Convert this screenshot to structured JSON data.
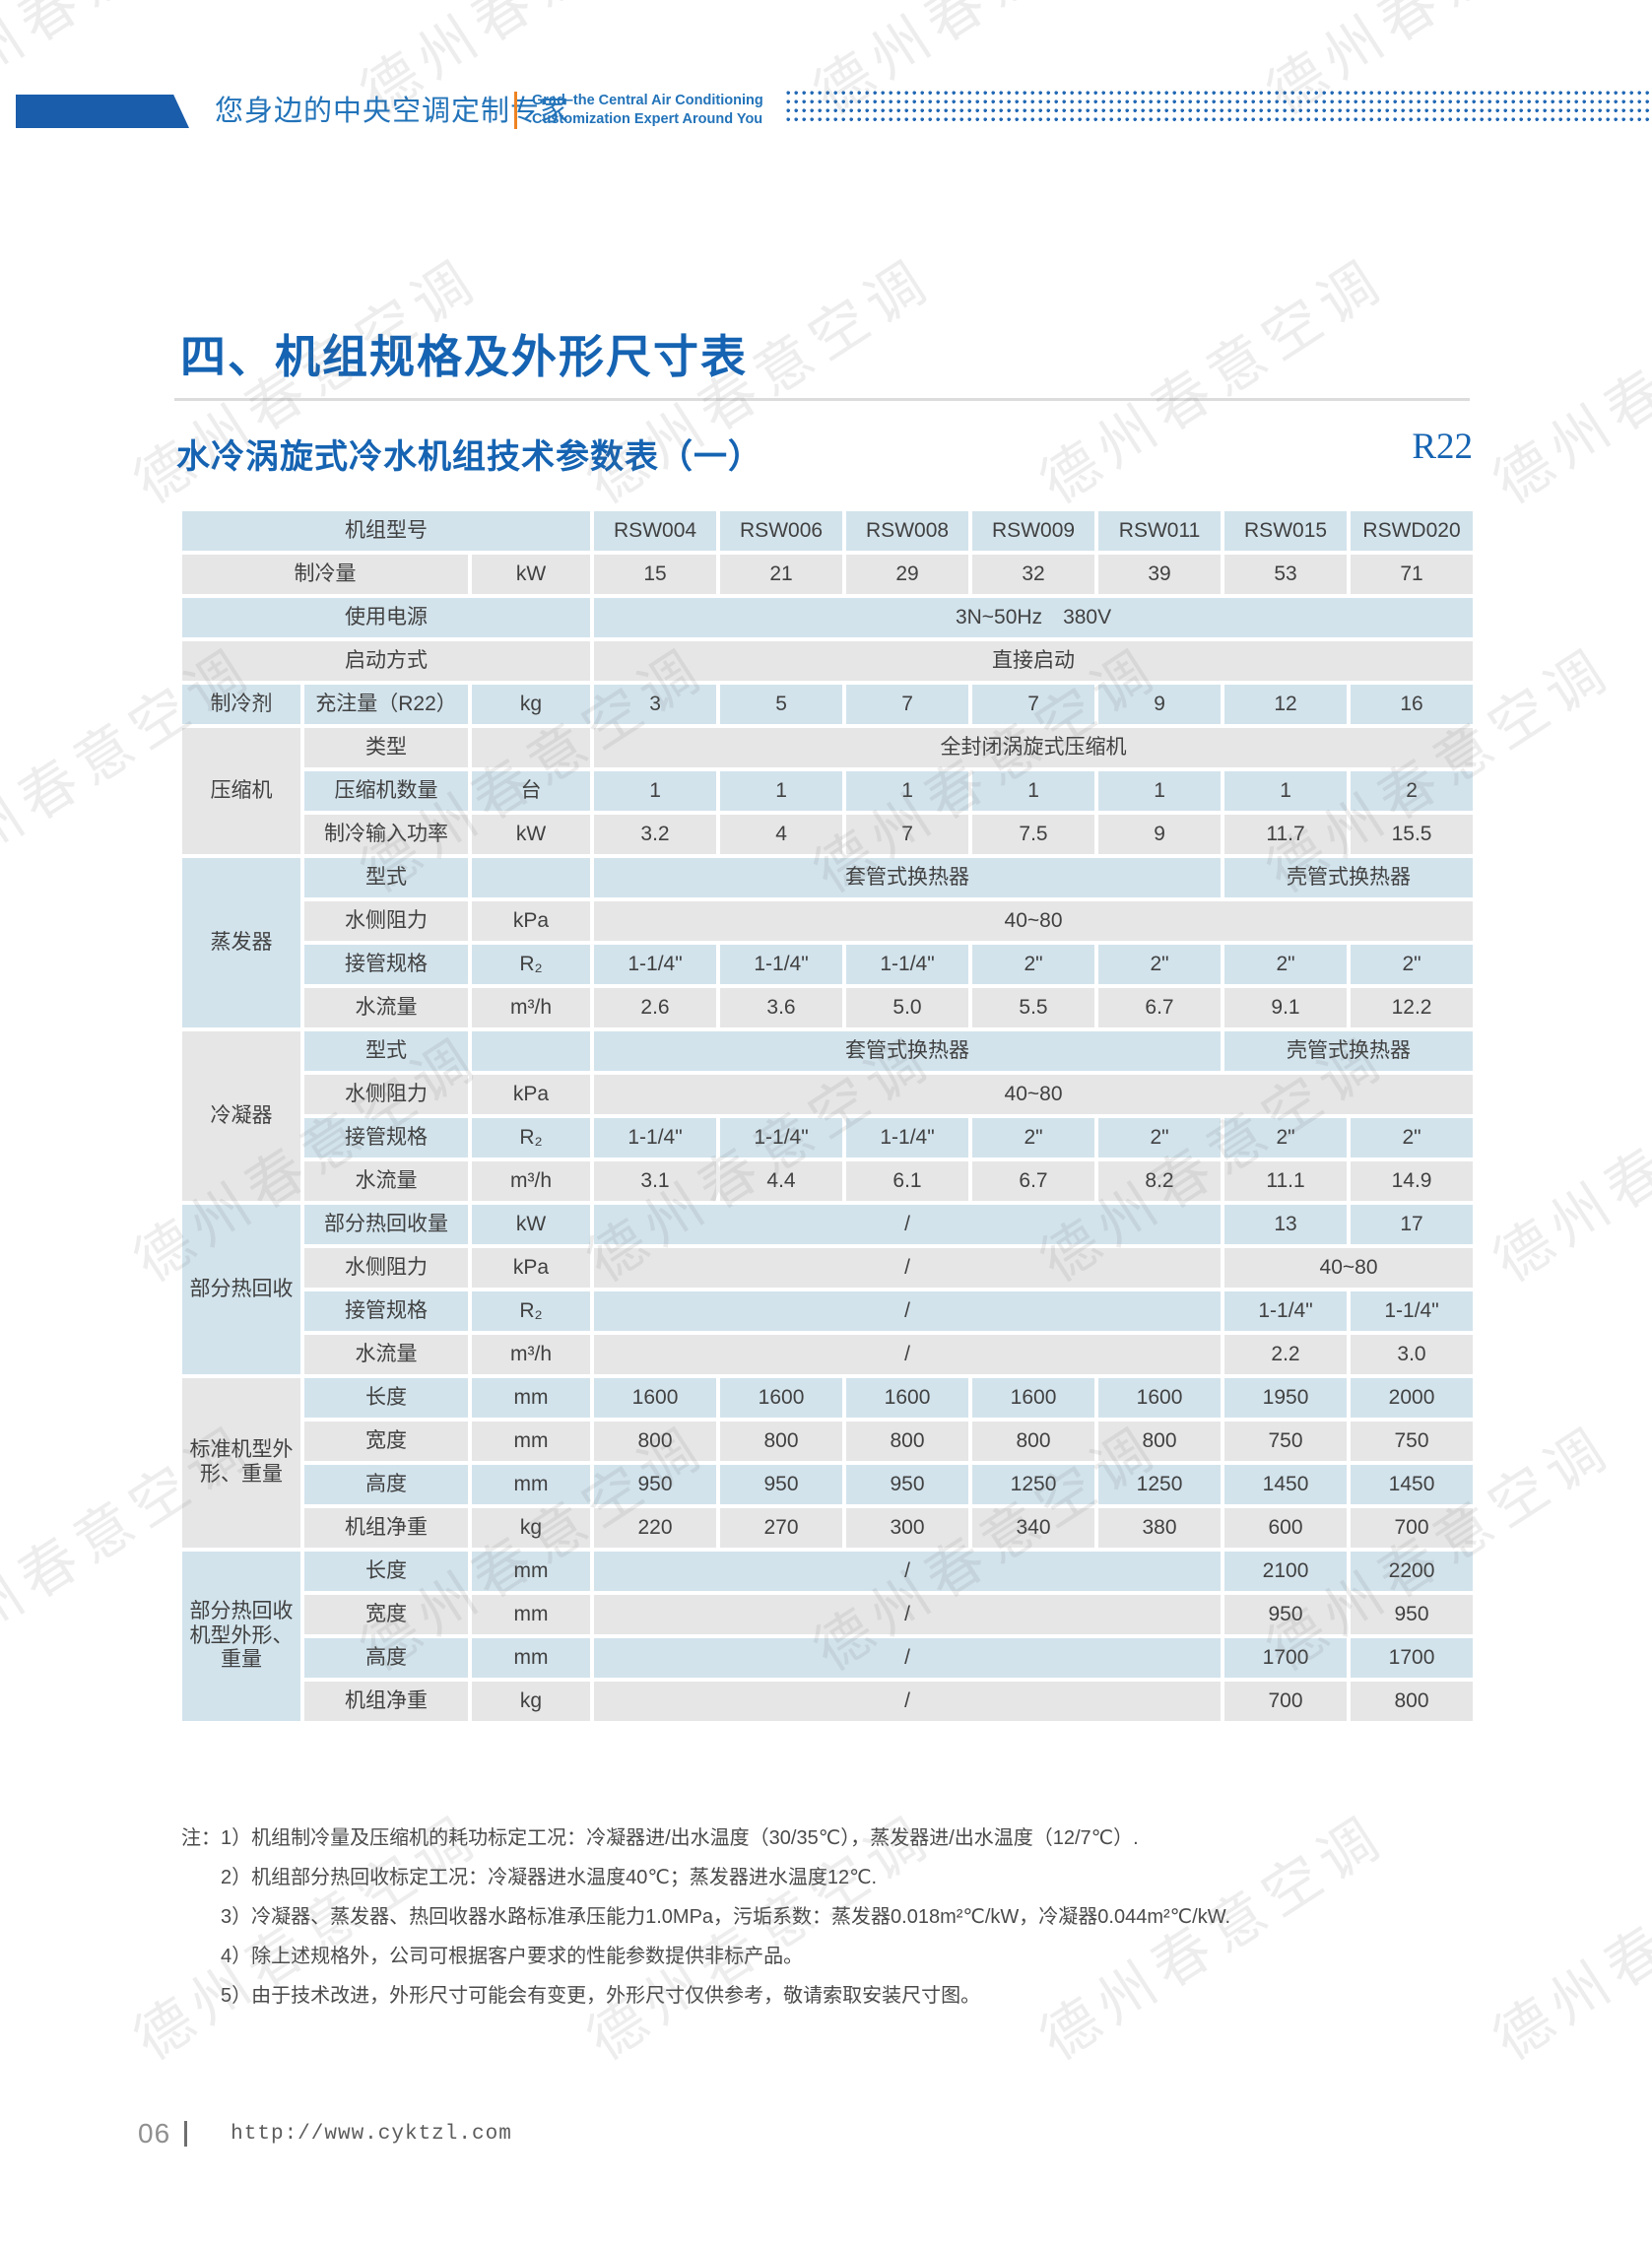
{
  "colors": {
    "accent_blue": "#1563b2",
    "brand_blue": "#2273b9",
    "bar_blue": "#1a5dab",
    "divider_orange": "#ee8322",
    "row_blue": "#d2e3ec",
    "row_gray": "#e6e6e6"
  },
  "header": {
    "tagline_zh": "您身边的中央空调定制专家",
    "tagline_en_line1": "Grad–the Central Air Conditioning",
    "tagline_en_line2": "Customization Expert Around You"
  },
  "section": {
    "title": "四、机组规格及外形尺寸表",
    "subtitle": "水冷涡旋式冷水机组技术参数表（一）",
    "refrigerant": "R22"
  },
  "table": {
    "models": [
      "RSW004",
      "RSW006",
      "RSW008",
      "RSW009",
      "RSW011",
      "RSW015",
      "RSWD020"
    ],
    "rows": [
      {
        "bg": "blue",
        "cells": [
          {
            "t": "机组型号",
            "cs": 3
          },
          {
            "t": "RSW004"
          },
          {
            "t": "RSW006"
          },
          {
            "t": "RSW008"
          },
          {
            "t": "RSW009"
          },
          {
            "t": "RSW011"
          },
          {
            "t": "RSW015"
          },
          {
            "t": "RSWD020"
          }
        ]
      },
      {
        "bg": "gray",
        "cells": [
          {
            "t": "制冷量",
            "cs": 2
          },
          {
            "t": "kW"
          },
          {
            "t": "15"
          },
          {
            "t": "21"
          },
          {
            "t": "29"
          },
          {
            "t": "32"
          },
          {
            "t": "39"
          },
          {
            "t": "53"
          },
          {
            "t": "71"
          }
        ]
      },
      {
        "bg": "blue",
        "cells": [
          {
            "t": "使用电源",
            "cs": 3
          },
          {
            "t": "3N~50Hz　380V",
            "cs": 7
          }
        ]
      },
      {
        "bg": "gray",
        "cells": [
          {
            "t": "启动方式",
            "cs": 3
          },
          {
            "t": "直接启动",
            "cs": 7
          }
        ]
      },
      {
        "bg": "blue",
        "cells": [
          {
            "t": "制冷剂"
          },
          {
            "t": "充注量（R22）"
          },
          {
            "t": "kg"
          },
          {
            "t": "3"
          },
          {
            "t": "5"
          },
          {
            "t": "7"
          },
          {
            "t": "7"
          },
          {
            "t": "9"
          },
          {
            "t": "12"
          },
          {
            "t": "16"
          }
        ]
      },
      {
        "bg": "gray",
        "cells": [
          {
            "t": "压缩机",
            "rs": 3,
            "bg": "gray"
          },
          {
            "t": "类型"
          },
          {
            "t": ""
          },
          {
            "t": "全封闭涡旋式压缩机",
            "cs": 7
          }
        ]
      },
      {
        "bg": "blue",
        "cells": [
          {
            "t": "压缩机数量"
          },
          {
            "t": "台"
          },
          {
            "t": "1"
          },
          {
            "t": "1"
          },
          {
            "t": "1"
          },
          {
            "t": "1"
          },
          {
            "t": "1"
          },
          {
            "t": "1"
          },
          {
            "t": "2"
          }
        ]
      },
      {
        "bg": "gray",
        "cells": [
          {
            "t": "制冷输入功率"
          },
          {
            "t": "kW"
          },
          {
            "t": "3.2"
          },
          {
            "t": "4"
          },
          {
            "t": "7"
          },
          {
            "t": "7.5"
          },
          {
            "t": "9"
          },
          {
            "t": "11.7"
          },
          {
            "t": "15.5"
          }
        ]
      },
      {
        "bg": "blue",
        "cells": [
          {
            "t": "蒸发器",
            "rs": 4,
            "bg": "blue"
          },
          {
            "t": "型式"
          },
          {
            "t": ""
          },
          {
            "t": "套管式换热器",
            "cs": 5
          },
          {
            "t": "壳管式换热器",
            "cs": 2
          }
        ]
      },
      {
        "bg": "gray",
        "cells": [
          {
            "t": "水侧阻力"
          },
          {
            "t": "kPa"
          },
          {
            "t": "40~80",
            "cs": 7
          }
        ]
      },
      {
        "bg": "blue",
        "cells": [
          {
            "t": "接管规格"
          },
          {
            "t": "R₂"
          },
          {
            "t": "1-1/4\""
          },
          {
            "t": "1-1/4\""
          },
          {
            "t": "1-1/4\""
          },
          {
            "t": "2\""
          },
          {
            "t": "2\""
          },
          {
            "t": "2\""
          },
          {
            "t": "2\""
          }
        ]
      },
      {
        "bg": "gray",
        "cells": [
          {
            "t": "水流量"
          },
          {
            "t": "m³/h"
          },
          {
            "t": "2.6"
          },
          {
            "t": "3.6"
          },
          {
            "t": "5.0"
          },
          {
            "t": "5.5"
          },
          {
            "t": "6.7"
          },
          {
            "t": "9.1"
          },
          {
            "t": "12.2"
          }
        ]
      },
      {
        "bg": "blue",
        "cells": [
          {
            "t": "冷凝器",
            "rs": 4,
            "bg": "gray"
          },
          {
            "t": "型式"
          },
          {
            "t": ""
          },
          {
            "t": "套管式换热器",
            "cs": 5
          },
          {
            "t": "壳管式换热器",
            "cs": 2
          }
        ]
      },
      {
        "bg": "gray",
        "cells": [
          {
            "t": "水侧阻力"
          },
          {
            "t": "kPa"
          },
          {
            "t": "40~80",
            "cs": 7
          }
        ]
      },
      {
        "bg": "blue",
        "cells": [
          {
            "t": "接管规格"
          },
          {
            "t": "R₂"
          },
          {
            "t": "1-1/4\""
          },
          {
            "t": "1-1/4\""
          },
          {
            "t": "1-1/4\""
          },
          {
            "t": "2\""
          },
          {
            "t": "2\""
          },
          {
            "t": "2\""
          },
          {
            "t": "2\""
          }
        ]
      },
      {
        "bg": "gray",
        "cells": [
          {
            "t": "水流量"
          },
          {
            "t": "m³/h"
          },
          {
            "t": "3.1"
          },
          {
            "t": "4.4"
          },
          {
            "t": "6.1"
          },
          {
            "t": "6.7"
          },
          {
            "t": "8.2"
          },
          {
            "t": "11.1"
          },
          {
            "t": "14.9"
          }
        ]
      },
      {
        "bg": "blue",
        "cells": [
          {
            "t": "部分热回收",
            "rs": 4,
            "bg": "blue"
          },
          {
            "t": "部分热回收量"
          },
          {
            "t": "kW"
          },
          {
            "t": "/",
            "cs": 5
          },
          {
            "t": "13"
          },
          {
            "t": "17"
          }
        ]
      },
      {
        "bg": "gray",
        "cells": [
          {
            "t": "水侧阻力"
          },
          {
            "t": "kPa"
          },
          {
            "t": "/",
            "cs": 5
          },
          {
            "t": "40~80",
            "cs": 2
          }
        ]
      },
      {
        "bg": "blue",
        "cells": [
          {
            "t": "接管规格"
          },
          {
            "t": "R₂"
          },
          {
            "t": "/",
            "cs": 5
          },
          {
            "t": "1-1/4\""
          },
          {
            "t": "1-1/4\""
          }
        ]
      },
      {
        "bg": "gray",
        "cells": [
          {
            "t": "水流量"
          },
          {
            "t": "m³/h"
          },
          {
            "t": "/",
            "cs": 5
          },
          {
            "t": "2.2"
          },
          {
            "t": "3.0"
          }
        ]
      },
      {
        "bg": "blue",
        "cells": [
          {
            "t": "标准机型外\n形、重量",
            "rs": 4,
            "bg": "gray"
          },
          {
            "t": "长度"
          },
          {
            "t": "mm"
          },
          {
            "t": "1600"
          },
          {
            "t": "1600"
          },
          {
            "t": "1600"
          },
          {
            "t": "1600"
          },
          {
            "t": "1600"
          },
          {
            "t": "1950"
          },
          {
            "t": "2000"
          }
        ]
      },
      {
        "bg": "gray",
        "cells": [
          {
            "t": "宽度"
          },
          {
            "t": "mm"
          },
          {
            "t": "800"
          },
          {
            "t": "800"
          },
          {
            "t": "800"
          },
          {
            "t": "800"
          },
          {
            "t": "800"
          },
          {
            "t": "750"
          },
          {
            "t": "750"
          }
        ]
      },
      {
        "bg": "blue",
        "cells": [
          {
            "t": "高度"
          },
          {
            "t": "mm"
          },
          {
            "t": "950"
          },
          {
            "t": "950"
          },
          {
            "t": "950"
          },
          {
            "t": "1250"
          },
          {
            "t": "1250"
          },
          {
            "t": "1450"
          },
          {
            "t": "1450"
          }
        ]
      },
      {
        "bg": "gray",
        "cells": [
          {
            "t": "机组净重"
          },
          {
            "t": "kg"
          },
          {
            "t": "220"
          },
          {
            "t": "270"
          },
          {
            "t": "300"
          },
          {
            "t": "340"
          },
          {
            "t": "380"
          },
          {
            "t": "600"
          },
          {
            "t": "700"
          }
        ]
      },
      {
        "bg": "blue",
        "cells": [
          {
            "t": "部分热回收\n机型外形、\n重量",
            "rs": 4,
            "bg": "blue"
          },
          {
            "t": "长度"
          },
          {
            "t": "mm"
          },
          {
            "t": "/",
            "cs": 5
          },
          {
            "t": "2100"
          },
          {
            "t": "2200"
          }
        ]
      },
      {
        "bg": "gray",
        "cells": [
          {
            "t": "宽度"
          },
          {
            "t": "mm"
          },
          {
            "t": "/",
            "cs": 5
          },
          {
            "t": "950"
          },
          {
            "t": "950"
          }
        ]
      },
      {
        "bg": "blue",
        "cells": [
          {
            "t": "高度"
          },
          {
            "t": "mm"
          },
          {
            "t": "/",
            "cs": 5
          },
          {
            "t": "1700"
          },
          {
            "t": "1700"
          }
        ]
      },
      {
        "bg": "gray",
        "cells": [
          {
            "t": "机组净重"
          },
          {
            "t": "kg"
          },
          {
            "t": "/",
            "cs": 5
          },
          {
            "t": "700"
          },
          {
            "t": "800"
          }
        ]
      }
    ]
  },
  "notes": {
    "prefix": "注：",
    "items": [
      "1）机组制冷量及压缩机的耗功标定工况：冷凝器进/出水温度（30/35℃），蒸发器进/出水温度（12/7℃）.",
      "2）机组部分热回收标定工况：冷凝器进水温度40℃；蒸发器进水温度12℃.",
      "3）冷凝器、蒸发器、热回收器水路标准承压能力1.0MPa，污垢系数：蒸发器0.018m²℃/kW，冷凝器0.044m²℃/kW.",
      "4）除上述规格外，公司可根据客户要求的性能参数提供非标产品。",
      "5）由于技术改进，外形尺寸可能会有变更，外形尺寸仅供参考，敬请索取安装尺寸图。"
    ]
  },
  "footer": {
    "page_number": "06",
    "url": "http://www.cyktzl.com"
  },
  "watermark": {
    "text": "德州春意空调"
  }
}
